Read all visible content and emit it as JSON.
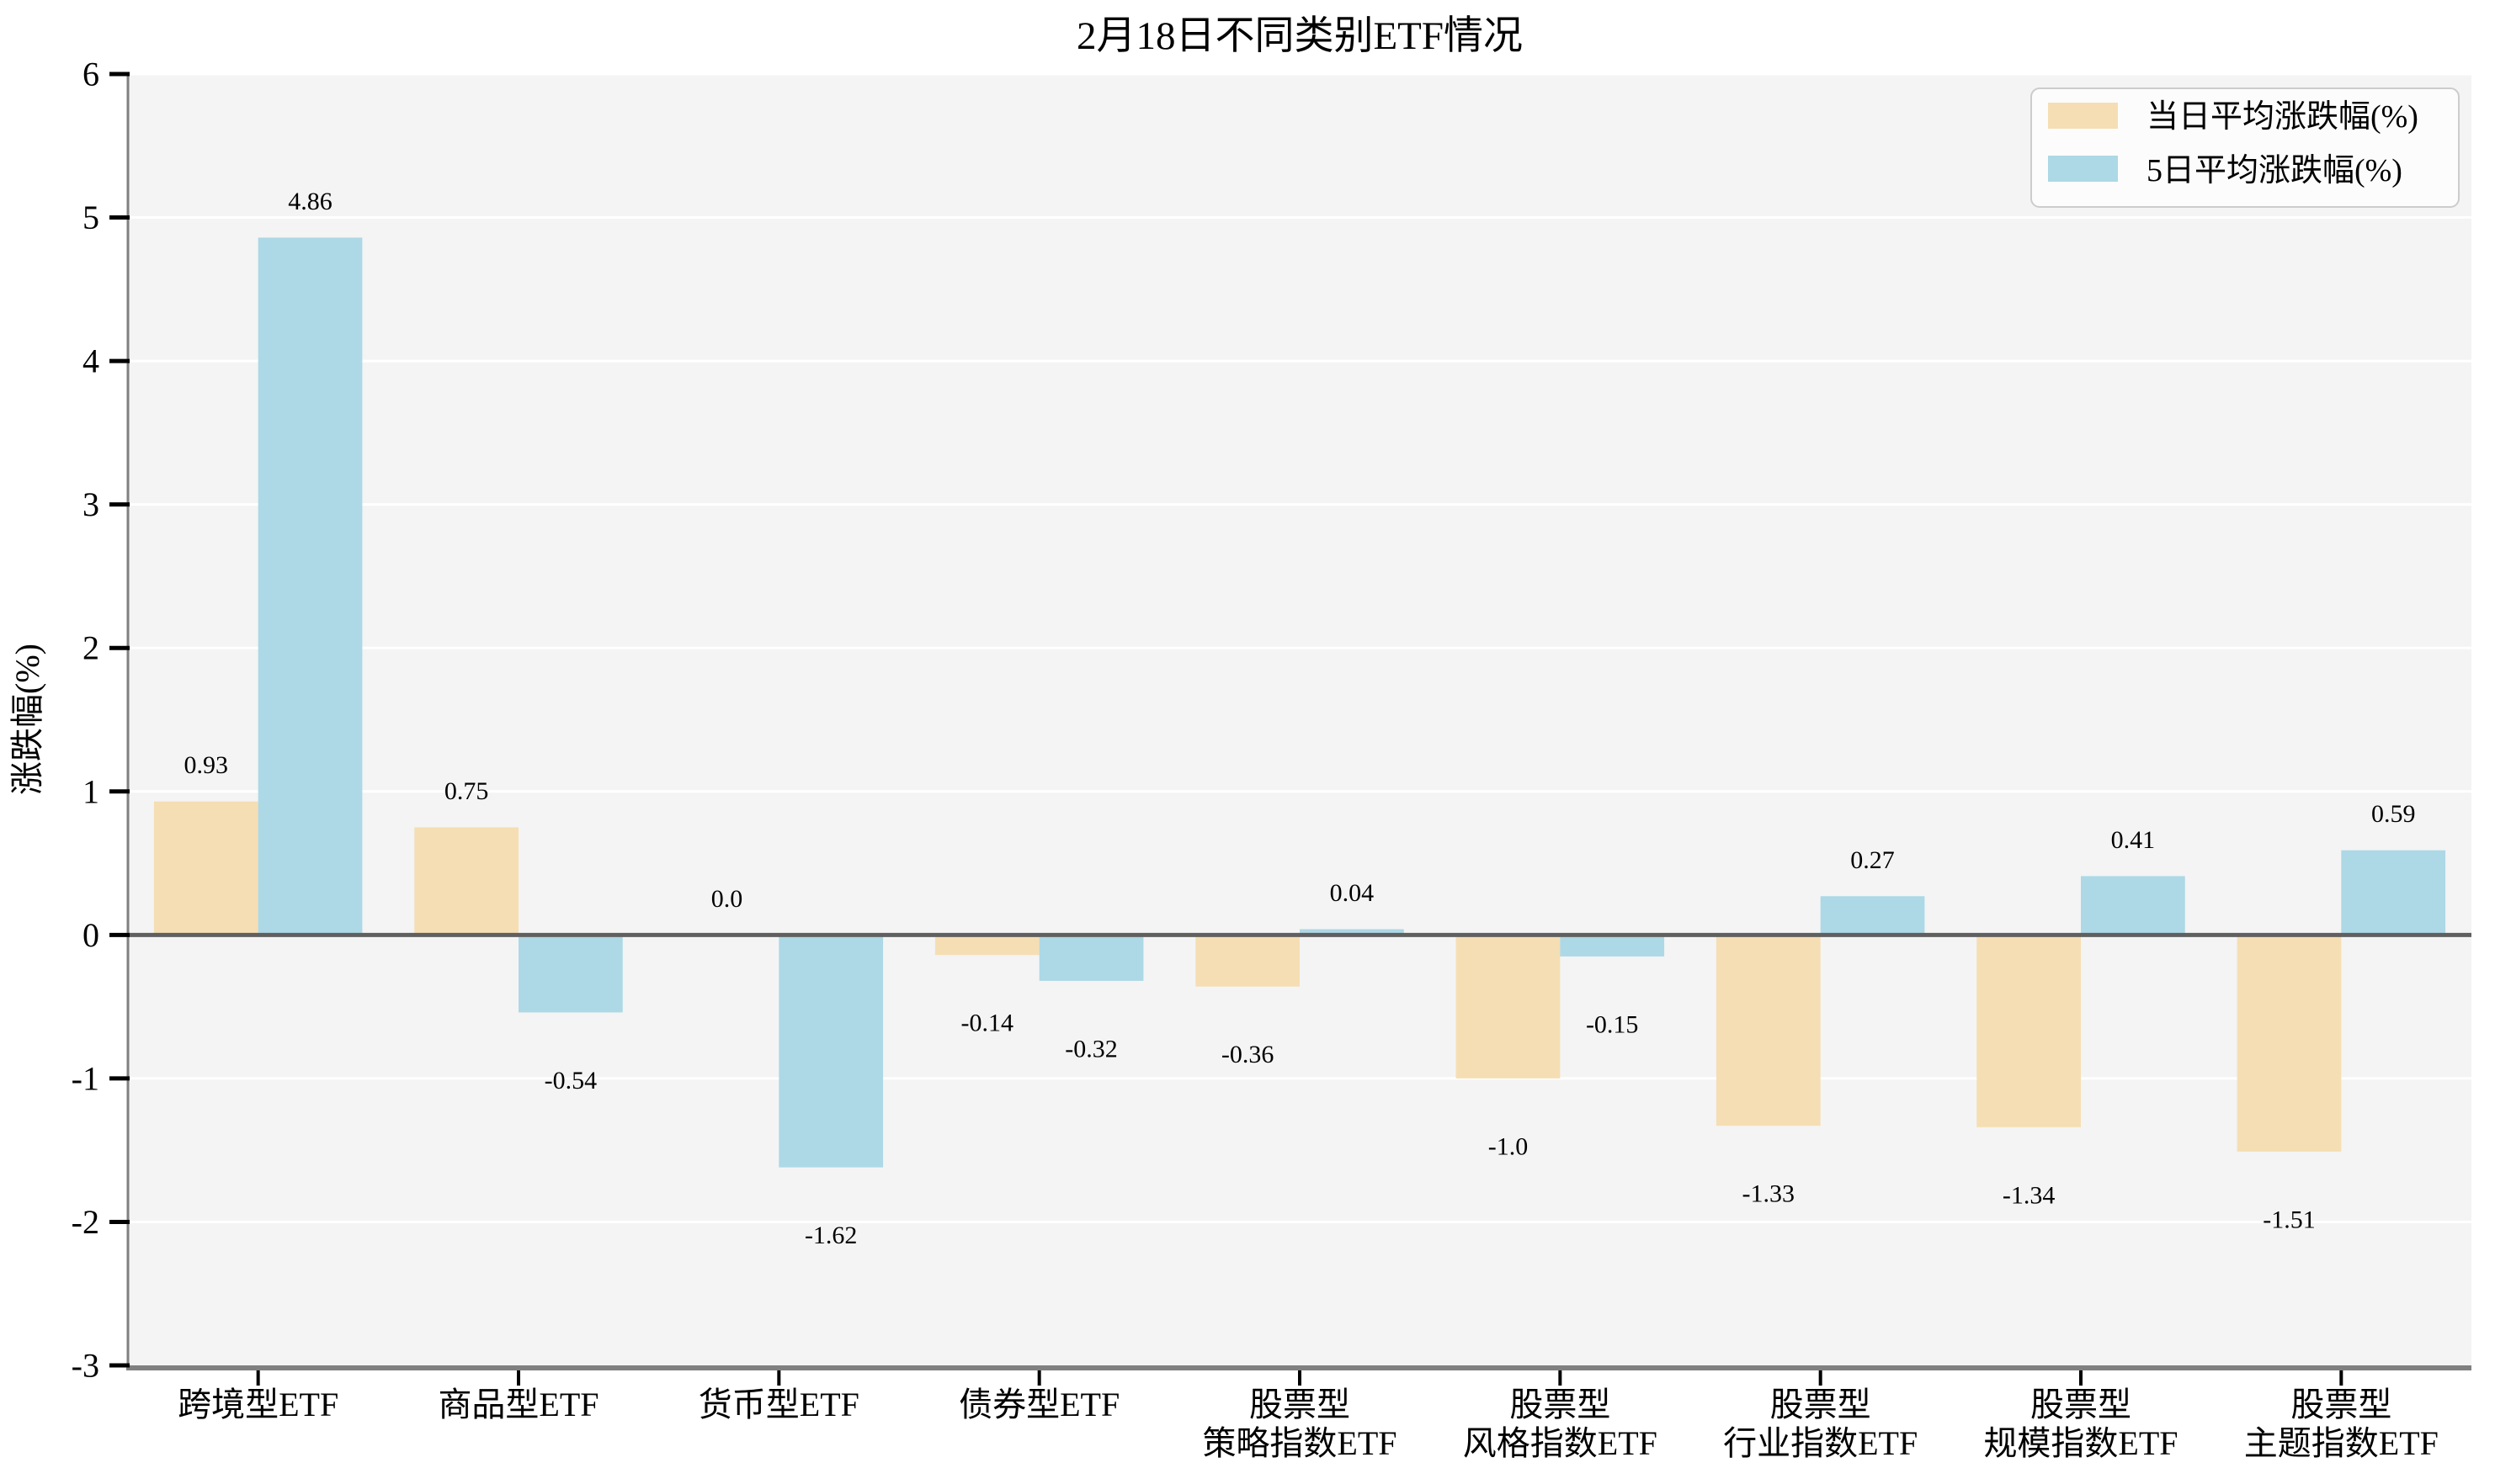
{
  "figure": {
    "background": "#ffffff",
    "plot_background": "#f4f4f4"
  },
  "chart_data": {
    "type": "bar",
    "title": "2月18日不同类别ETF情况",
    "xlabel": "",
    "ylabel": "涨跌幅(%)",
    "ylim": [
      -3,
      6
    ],
    "yticks": [
      -3,
      -2,
      -1,
      0,
      1,
      2,
      3,
      4,
      5,
      6
    ],
    "grid": true,
    "legend_position": "upper-right",
    "categories": [
      "跨境型ETF",
      "商品型ETF",
      "货币型ETF",
      "债券型ETF",
      "股票型\n策略指数ETF",
      "股票型\n风格指数ETF",
      "股票型\n行业指数ETF",
      "股票型\n规模指数ETF",
      "股票型\n主题指数ETF"
    ],
    "series": [
      {
        "name": "当日平均涨跌幅(%)",
        "color": "#f5deb3",
        "values": [
          0.93,
          0.75,
          0.0,
          -0.14,
          -0.36,
          -1.0,
          -1.33,
          -1.34,
          -1.51
        ],
        "labels": [
          "0.93",
          "0.75",
          "0.0",
          "-0.14",
          "-0.36",
          "-1.0",
          "-1.33",
          "-1.34",
          "-1.51"
        ]
      },
      {
        "name": "5日平均涨跌幅(%)",
        "color": "#add8e6",
        "values": [
          4.86,
          -0.54,
          -1.62,
          -0.32,
          0.04,
          -0.15,
          0.27,
          0.41,
          0.59
        ],
        "labels": [
          "4.86",
          "-0.54",
          "-1.62",
          "-0.32",
          "0.04",
          "-0.15",
          "0.27",
          "0.41",
          "0.59"
        ]
      }
    ],
    "axis_colors": {
      "spine": "#808080",
      "zero_line": "#606060",
      "gridline": "#ffffff",
      "tick": "#000000",
      "text": "#000000"
    }
  }
}
